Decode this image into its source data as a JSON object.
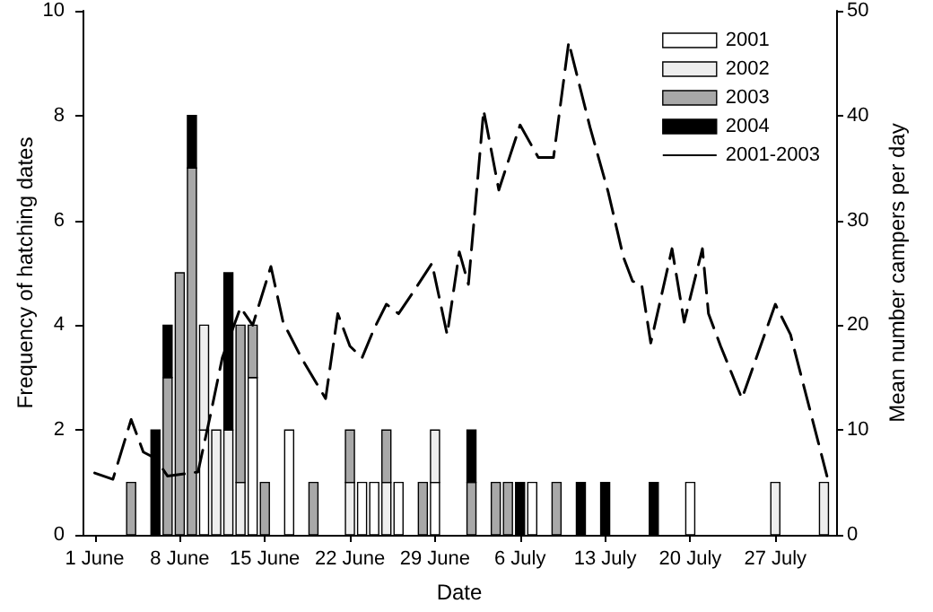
{
  "chart_data": {
    "type": "bar",
    "stacked": true,
    "xlabel": "Date",
    "ylabel": "Frequency of hatching dates",
    "y2label": "Mean number campers per day",
    "x": [
      "--06-04",
      "--06-06",
      "--06-07",
      "--06-08",
      "--06-09",
      "--06-10",
      "--06-11",
      "--06-12",
      "--06-13",
      "--06-14",
      "--06-15",
      "--06-17",
      "--06-19",
      "--06-22",
      "--06-23",
      "--06-24",
      "--06-25",
      "--06-26",
      "--06-28",
      "--06-29",
      "--07-02",
      "--07-04",
      "--07-05",
      "--07-06",
      "--07-07",
      "--07-09",
      "--07-11",
      "--07-13",
      "--07-17",
      "--07-20",
      "--07-27",
      "--07-31"
    ],
    "series": [
      {
        "name": "2001",
        "color": "#ffffff",
        "values": [
          null,
          null,
          null,
          null,
          null,
          2,
          null,
          null,
          null,
          3,
          null,
          2,
          null,
          null,
          1,
          1,
          null,
          1,
          null,
          1,
          null,
          null,
          null,
          null,
          1,
          null,
          null,
          null,
          null,
          1,
          null,
          null
        ]
      },
      {
        "name": "2002",
        "color": "#eeeeee",
        "values": [
          null,
          null,
          null,
          null,
          null,
          2,
          2,
          2,
          1,
          null,
          null,
          null,
          null,
          1,
          null,
          null,
          1,
          null,
          null,
          1,
          null,
          null,
          null,
          null,
          null,
          null,
          null,
          null,
          null,
          null,
          1,
          1
        ]
      },
      {
        "name": "2003",
        "color": "#a8a8a8",
        "values": [
          1,
          null,
          3,
          5,
          7,
          null,
          null,
          null,
          3,
          1,
          1,
          null,
          1,
          1,
          null,
          null,
          1,
          null,
          1,
          null,
          1,
          1,
          1,
          null,
          null,
          1,
          null,
          null,
          null,
          null,
          null,
          null
        ]
      },
      {
        "name": "2004",
        "color": "#000000",
        "values": [
          null,
          2,
          1,
          null,
          1,
          null,
          null,
          3,
          null,
          null,
          null,
          null,
          null,
          null,
          null,
          null,
          null,
          null,
          null,
          null,
          1,
          null,
          null,
          1,
          null,
          null,
          1,
          1,
          1,
          null,
          null,
          null
        ]
      },
      {
        "name": "2001-2003",
        "type": "line",
        "axis": "y2",
        "color": "#000000",
        "line_style": "dashed",
        "x": [
          "--06-01",
          "--06-02T12:00",
          "--06-04",
          "--06-05",
          "--06-06",
          "--06-07",
          "--06-09T12:00",
          "--06-10T12:00",
          "--06-11T12:00",
          "--06-13",
          "--06-14",
          "--06-15T12:00",
          "--06-16T12:00",
          "--06-18",
          "--06-20",
          "--06-21",
          "--06-22",
          "--06-23",
          "--06-24",
          "--06-25",
          "--06-26",
          "--06-27",
          "--06-28T18:00",
          "--06-30",
          "--07-01",
          "--07-01T18:00",
          "--07-02T12:00",
          "--07-03",
          "--07-04T06:00",
          "--07-06",
          "--07-07T12:00",
          "--07-08T18:00",
          "--07-10",
          "--07-11T18:00",
          "--07-13T06:00",
          "--07-14T12:00",
          "--07-15T06:00",
          "--07-16",
          "--07-16T18:00",
          "--07-18T12:00",
          "--07-19T12:00",
          "--07-21",
          "--07-21T12:00",
          "--07-22T12:00",
          "--07-24T06:00",
          "--07-27",
          "--07-28T06:00",
          "--07-31T06:00"
        ],
        "values": [
          5.9,
          5.3,
          11,
          7.9,
          7.3,
          5.6,
          6,
          11.3,
          16.9,
          21.7,
          20,
          25.6,
          20.3,
          16.9,
          13,
          21.1,
          18,
          16.9,
          19.7,
          22,
          21.1,
          22.8,
          25.9,
          19.1,
          27,
          23.9,
          33.8,
          40.5,
          32.9,
          39.1,
          36,
          36,
          47,
          38.9,
          32.7,
          26.5,
          24.2,
          23.9,
          18.3,
          27.3,
          20.3,
          27.3,
          21.1,
          18,
          13,
          22,
          19.1,
          5.6
        ]
      }
    ],
    "xlim": [
      "--05-31",
      "--08-01"
    ],
    "xticks": [
      {
        "value": "--06-01",
        "label": "1 June"
      },
      {
        "value": "--06-08",
        "label": "8 June"
      },
      {
        "value": "--06-15",
        "label": "15 June"
      },
      {
        "value": "--06-22",
        "label": "22 June"
      },
      {
        "value": "--06-29",
        "label": "29 June"
      },
      {
        "value": "--07-06",
        "label": "6 July"
      },
      {
        "value": "--07-13",
        "label": "13 July"
      },
      {
        "value": "--07-20",
        "label": "20 July"
      },
      {
        "value": "--07-27",
        "label": "27 July"
      }
    ],
    "ylim": [
      0,
      10
    ],
    "yticks": [
      0,
      2,
      4,
      6,
      8,
      10
    ],
    "y2lim": [
      0,
      50
    ],
    "y2ticks": [
      0,
      10,
      20,
      30,
      40,
      50
    ],
    "grid": false,
    "legend": "top right"
  }
}
